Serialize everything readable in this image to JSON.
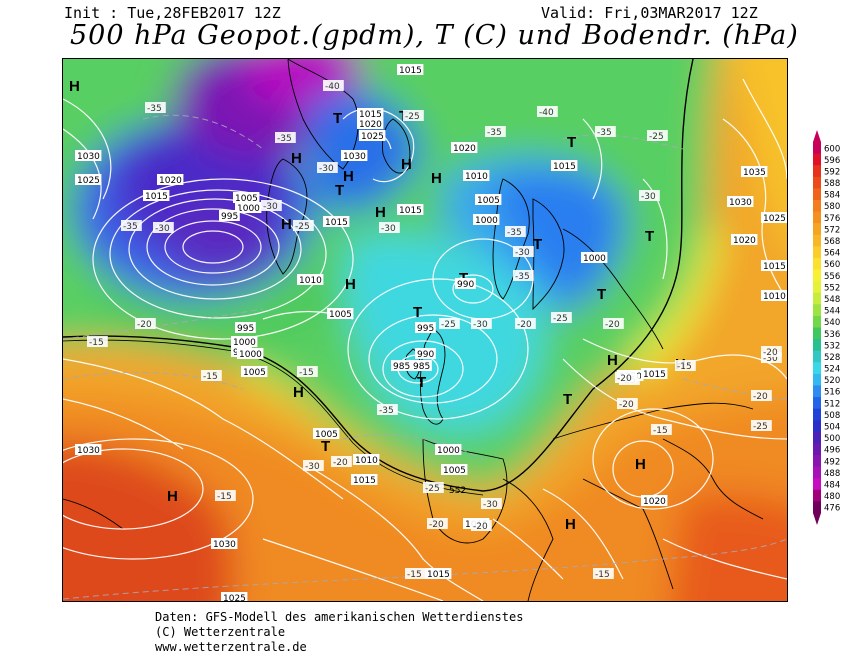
{
  "header": {
    "init": "Init : Tue,28FEB2017 12Z",
    "valid": "Valid: Fri,03MAR2017 12Z",
    "title": "500 hPa Geopot.(gpdm), T (C) und Bodendr. (hPa)"
  },
  "footer": {
    "line1": "Daten: GFS-Modell des amerikanischen Wetterdienstes",
    "line2": "(C) Wetterzentrale",
    "line3": "www.wetterzentrale.de"
  },
  "legend": {
    "levels": [
      "600",
      "596",
      "592",
      "588",
      "584",
      "580",
      "576",
      "572",
      "568",
      "564",
      "560",
      "556",
      "552",
      "548",
      "544",
      "540",
      "536",
      "532",
      "528",
      "524",
      "520",
      "516",
      "512",
      "508",
      "504",
      "500",
      "496",
      "492",
      "488",
      "484",
      "480",
      "476"
    ],
    "colors": [
      "#c8005a",
      "#e0102a",
      "#e8301a",
      "#ec4a18",
      "#f0641a",
      "#f27c1e",
      "#f49020",
      "#f6a424",
      "#f8b628",
      "#facc2c",
      "#fce030",
      "#f8f034",
      "#e6f23a",
      "#c6ec3e",
      "#9ee440",
      "#72d84a",
      "#40c85e",
      "#28c08e",
      "#30c8c0",
      "#38d8e8",
      "#34b8f0",
      "#2c8cf0",
      "#2464e8",
      "#2042d8",
      "#2c2cc8",
      "#4a20b8",
      "#6a18b0",
      "#8a14b0",
      "#a810b8",
      "#c60ec0",
      "#a0007a",
      "#70005a"
    ]
  },
  "map": {
    "highs": [
      {
        "label": "H"
      },
      {
        "label": "H"
      },
      {
        "label": "H"
      },
      {
        "label": "H"
      },
      {
        "label": "H"
      },
      {
        "label": "H"
      },
      {
        "label": "H"
      },
      {
        "label": "H"
      },
      {
        "label": "H"
      },
      {
        "label": "H"
      },
      {
        "label": "H"
      },
      {
        "label": "H"
      },
      {
        "label": "H"
      },
      {
        "label": "H"
      }
    ],
    "lows": [
      {
        "label": "T"
      },
      {
        "label": "T"
      },
      {
        "label": "T"
      },
      {
        "label": "T"
      },
      {
        "label": "T"
      },
      {
        "label": "T"
      },
      {
        "label": "T"
      },
      {
        "label": "T"
      },
      {
        "label": "T"
      },
      {
        "label": "T"
      },
      {
        "label": "T"
      },
      {
        "label": "T"
      }
    ],
    "isobar_labels": [
      "1015",
      "1015",
      "1020",
      "1025",
      "1030",
      "1030",
      "1025",
      "1020",
      "1015",
      "1005",
      "1000",
      "995",
      "1015",
      "1015",
      "1010",
      "1005",
      "1000",
      "995",
      "990",
      "985",
      "990",
      "995",
      "1000",
      "1005",
      "1010",
      "1015",
      "1020",
      "1030",
      "1035",
      "1030",
      "1025",
      "1020",
      "1015",
      "1010",
      "1005",
      "1000",
      "1005",
      "1010",
      "1015",
      "1020",
      "1015",
      "1015",
      "1030",
      "1025",
      "1015",
      "1020",
      "1005",
      "1000",
      "985",
      "995",
      "1000"
    ],
    "temp_labels": [
      "-35",
      "-40",
      "-35",
      "-30",
      "-25",
      "-35",
      "-40",
      "-35",
      "-30",
      "-25",
      "-30",
      "-35",
      "-30",
      "-25",
      "-30",
      "-35",
      "-30",
      "-20",
      "-15",
      "-15",
      "-20",
      "-25",
      "-20",
      "-15",
      "-15",
      "-20",
      "-25",
      "-30",
      "-20",
      "-35",
      "-30",
      "-25",
      "-20",
      "-15",
      "-20",
      "-25",
      "-30",
      "-20",
      "-15",
      "-15",
      "-20",
      "-25",
      "-30",
      "-35",
      "-20",
      "-15"
    ],
    "height_label": "552"
  }
}
